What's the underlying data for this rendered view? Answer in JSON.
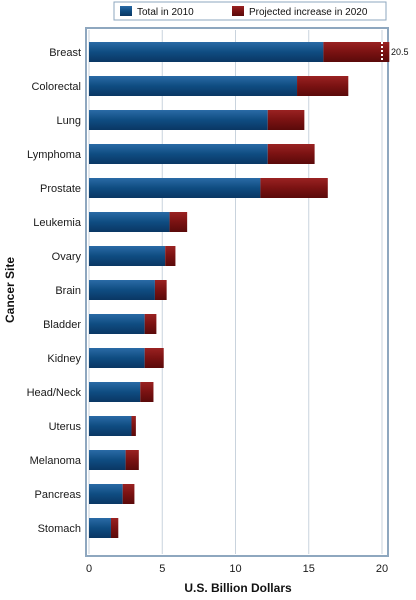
{
  "chart_data": {
    "type": "bar",
    "orientation": "horizontal",
    "stacked": true,
    "categories": [
      "Breast",
      "Colorectal",
      "Lung",
      "Lymphoma",
      "Prostate",
      "Leukemia",
      "Ovary",
      "Brain",
      "Bladder",
      "Kidney",
      "Head/Neck",
      "Uterus",
      "Melanoma",
      "Pancreas",
      "Stomach"
    ],
    "series": [
      {
        "name": "Total in 2010",
        "color": "#0f4c81",
        "values": [
          16.0,
          14.2,
          12.2,
          12.2,
          11.7,
          5.5,
          5.2,
          4.5,
          3.8,
          3.8,
          3.5,
          2.9,
          2.5,
          2.3,
          1.5
        ]
      },
      {
        "name": "Projected increase in 2020",
        "color": "#7a1212",
        "values": [
          4.5,
          3.5,
          2.5,
          3.2,
          4.6,
          1.2,
          0.7,
          0.8,
          0.8,
          1.3,
          0.9,
          0.3,
          0.9,
          0.8,
          0.5
        ]
      }
    ],
    "data_labels": [
      {
        "category": "Breast",
        "text": "20.5"
      }
    ],
    "xlabel": "U.S. Billion Dollars",
    "ylabel": "Cancer Site",
    "xlim": [
      0,
      20
    ],
    "xticks": [
      0,
      5,
      10,
      15,
      20
    ],
    "grid": "vertical",
    "legend_position": "top"
  }
}
